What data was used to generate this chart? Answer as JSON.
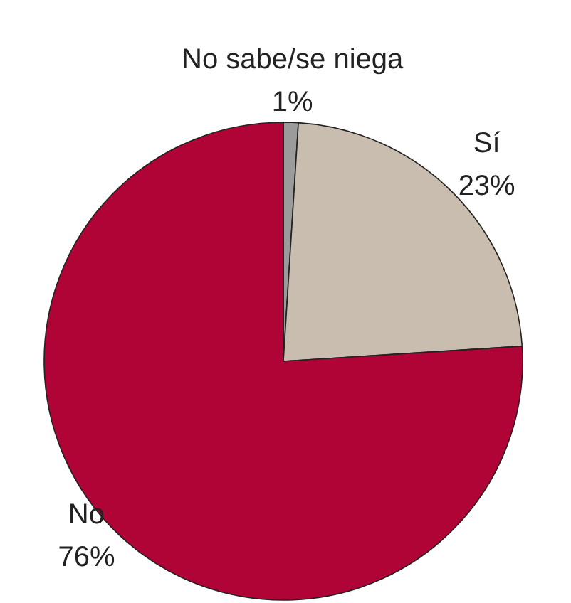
{
  "chart_data": {
    "type": "pie",
    "categories": [
      "No sabe/se niega",
      "Sí",
      "No"
    ],
    "values": [
      1,
      23,
      76
    ],
    "colors": [
      "#9b9b9b",
      "#c9bdaf",
      "#b00336"
    ],
    "value_labels": [
      "1%",
      "23%",
      "76%"
    ]
  }
}
